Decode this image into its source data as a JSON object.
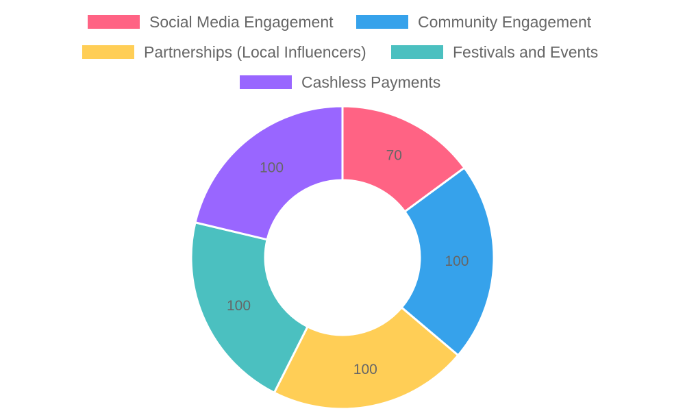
{
  "chart_data": {
    "type": "doughnut",
    "categories": [
      "Social Media Engagement",
      "Community Engagement",
      "Partnerships (Local Influencers)",
      "Festivals and Events",
      "Cashless Payments"
    ],
    "values": [
      70,
      100,
      100,
      100,
      100
    ],
    "colors": [
      "#FF6384",
      "#36A2EB",
      "#FFCE56",
      "#4BC0C0",
      "#9966FF"
    ],
    "legend_position": "top",
    "data_labels": true
  }
}
